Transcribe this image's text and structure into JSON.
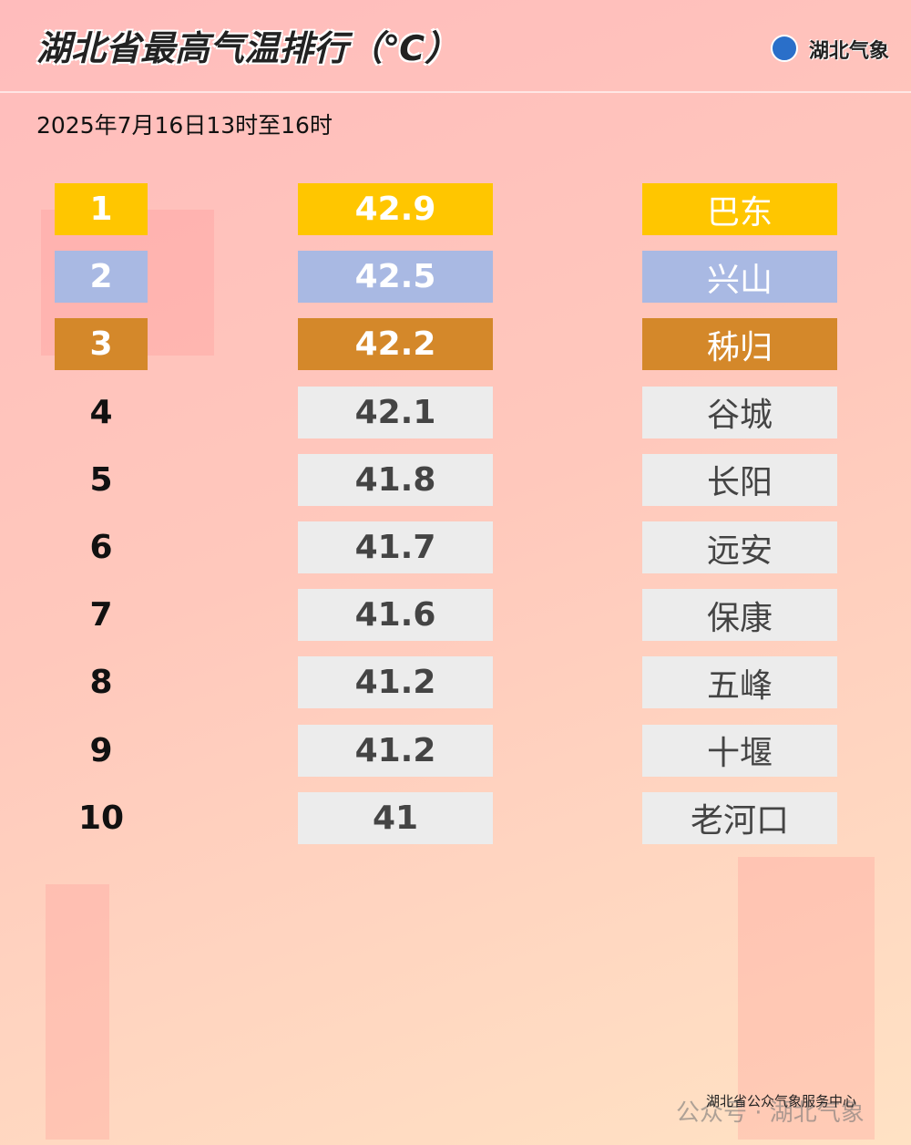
{
  "header": {
    "title": "湖北省最高气温排行（℃）",
    "logo": "湖北气象"
  },
  "subtitle": "2025年7月16日13时至16时",
  "table": {
    "highlight_colors": [
      "#ffc600",
      "#a9b9e3",
      "#d4882a"
    ],
    "default_color": "#ececec",
    "rows": [
      {
        "rank": 1,
        "value": 42.9,
        "name": "巴东"
      },
      {
        "rank": 2,
        "value": 42.5,
        "name": "兴山"
      },
      {
        "rank": 3,
        "value": 42.2,
        "name": "秭归"
      },
      {
        "rank": 4,
        "value": 42.1,
        "name": "谷城"
      },
      {
        "rank": 5,
        "value": 41.8,
        "name": "长阳"
      },
      {
        "rank": 6,
        "value": 41.7,
        "name": "远安"
      },
      {
        "rank": 7,
        "value": 41.6,
        "name": "保康"
      },
      {
        "rank": 8,
        "value": 41.2,
        "name": "五峰"
      },
      {
        "rank": 9,
        "value": 41.2,
        "name": "十堰"
      },
      {
        "rank": 10,
        "value": 41,
        "name": "老河口"
      }
    ]
  },
  "footer": {
    "source": "湖北省公众气象服务中心",
    "watermark": "公众号 · 湖北气象"
  }
}
